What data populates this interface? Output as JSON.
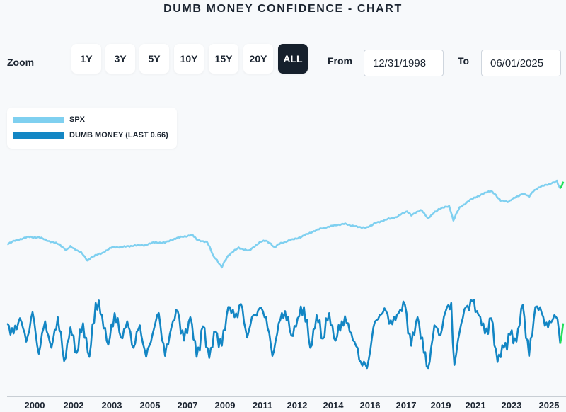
{
  "title": "DUMB MONEY CONFIDENCE - CHART",
  "zoom": {
    "label": "Zoom",
    "options": [
      "1Y",
      "3Y",
      "5Y",
      "10Y",
      "15Y",
      "20Y",
      "ALL"
    ],
    "selected": "ALL"
  },
  "range": {
    "from_label": "From",
    "from_value": "12/31/1998",
    "to_label": "To",
    "to_value": "06/01/2025"
  },
  "legend": [
    {
      "name": "SPX",
      "color": "#7fd0f0"
    },
    {
      "name": "DUMB MONEY (LAST 0.66)",
      "color": "#1386c4"
    }
  ],
  "colors": {
    "spx": "#7fd0f0",
    "dumb_money": "#1386c4",
    "latest_move": "#21e05a",
    "axis": "#9aa3ad"
  },
  "chart_data": {
    "type": "line",
    "x_ticks": [
      "2000",
      "2002",
      "2003",
      "2005",
      "2007",
      "2009",
      "2011",
      "2012",
      "2014",
      "2016",
      "2017",
      "2019",
      "2021",
      "2023",
      "2025"
    ],
    "xlim": [
      1998.99,
      2025.42
    ],
    "series": [
      {
        "name": "SPX",
        "points": [
          [
            1999.0,
            1229
          ],
          [
            1999.5,
            1372
          ],
          [
            2000.0,
            1469
          ],
          [
            2000.5,
            1455
          ],
          [
            2001.0,
            1320
          ],
          [
            2001.5,
            1211
          ],
          [
            2001.8,
            1040
          ],
          [
            2002.0,
            1148
          ],
          [
            2002.5,
            990
          ],
          [
            2002.8,
            815
          ],
          [
            2003.0,
            880
          ],
          [
            2003.5,
            975
          ],
          [
            2004.0,
            1132
          ],
          [
            2004.5,
            1140
          ],
          [
            2005.0,
            1181
          ],
          [
            2005.5,
            1191
          ],
          [
            2006.0,
            1280
          ],
          [
            2006.5,
            1270
          ],
          [
            2007.0,
            1418
          ],
          [
            2007.5,
            1504
          ],
          [
            2007.8,
            1540
          ],
          [
            2008.0,
            1378
          ],
          [
            2008.5,
            1280
          ],
          [
            2008.8,
            900
          ],
          [
            2009.2,
            680
          ],
          [
            2009.5,
            920
          ],
          [
            2010.0,
            1115
          ],
          [
            2010.5,
            1030
          ],
          [
            2011.0,
            1286
          ],
          [
            2011.3,
            1345
          ],
          [
            2011.7,
            1130
          ],
          [
            2012.0,
            1258
          ],
          [
            2012.5,
            1362
          ],
          [
            2013.0,
            1480
          ],
          [
            2013.5,
            1680
          ],
          [
            2014.0,
            1848
          ],
          [
            2014.5,
            1960
          ],
          [
            2015.0,
            2058
          ],
          [
            2015.6,
            1910
          ],
          [
            2016.1,
            1860
          ],
          [
            2016.5,
            2098
          ],
          [
            2017.0,
            2278
          ],
          [
            2017.5,
            2450
          ],
          [
            2018.0,
            2823
          ],
          [
            2018.2,
            2580
          ],
          [
            2018.7,
            2910
          ],
          [
            2018.98,
            2350
          ],
          [
            2019.5,
            2980
          ],
          [
            2020.0,
            3230
          ],
          [
            2020.2,
            2237
          ],
          [
            2020.5,
            3100
          ],
          [
            2021.0,
            3756
          ],
          [
            2021.5,
            4300
          ],
          [
            2022.0,
            4766
          ],
          [
            2022.45,
            3700
          ],
          [
            2022.78,
            3580
          ],
          [
            2023.0,
            3840
          ],
          [
            2023.5,
            4450
          ],
          [
            2023.8,
            4117
          ],
          [
            2024.0,
            4770
          ],
          [
            2024.5,
            5460
          ],
          [
            2025.0,
            5882
          ],
          [
            2025.12,
            6120
          ],
          [
            2025.27,
            4982
          ],
          [
            2025.42,
            5912
          ]
        ]
      },
      {
        "name": "DUMB MONEY (LAST 0.66)",
        "ylim": [
          0.15,
          0.95
        ],
        "points": [
          [
            1999.0,
            0.66
          ],
          [
            1999.3,
            0.56
          ],
          [
            1999.6,
            0.71
          ],
          [
            1999.9,
            0.48
          ],
          [
            2000.2,
            0.77
          ],
          [
            2000.5,
            0.36
          ],
          [
            2000.8,
            0.68
          ],
          [
            2001.1,
            0.42
          ],
          [
            2001.4,
            0.72
          ],
          [
            2001.7,
            0.29
          ],
          [
            2002.0,
            0.62
          ],
          [
            2002.3,
            0.37
          ],
          [
            2002.6,
            0.66
          ],
          [
            2002.9,
            0.33
          ],
          [
            2003.2,
            0.86
          ],
          [
            2003.5,
            0.74
          ],
          [
            2003.8,
            0.45
          ],
          [
            2004.1,
            0.76
          ],
          [
            2004.4,
            0.52
          ],
          [
            2004.7,
            0.68
          ],
          [
            2005.0,
            0.42
          ],
          [
            2005.3,
            0.64
          ],
          [
            2005.6,
            0.33
          ],
          [
            2005.9,
            0.55
          ],
          [
            2006.2,
            0.76
          ],
          [
            2006.5,
            0.34
          ],
          [
            2006.8,
            0.62
          ],
          [
            2007.1,
            0.78
          ],
          [
            2007.4,
            0.49
          ],
          [
            2007.7,
            0.72
          ],
          [
            2008.0,
            0.33
          ],
          [
            2008.3,
            0.63
          ],
          [
            2008.6,
            0.32
          ],
          [
            2008.9,
            0.58
          ],
          [
            2009.2,
            0.44
          ],
          [
            2009.5,
            0.82
          ],
          [
            2009.8,
            0.72
          ],
          [
            2010.1,
            0.85
          ],
          [
            2010.4,
            0.52
          ],
          [
            2010.7,
            0.74
          ],
          [
            2011.0,
            0.81
          ],
          [
            2011.3,
            0.72
          ],
          [
            2011.6,
            0.34
          ],
          [
            2011.9,
            0.66
          ],
          [
            2012.2,
            0.78
          ],
          [
            2012.5,
            0.54
          ],
          [
            2012.8,
            0.71
          ],
          [
            2013.1,
            0.82
          ],
          [
            2013.4,
            0.42
          ],
          [
            2013.7,
            0.74
          ],
          [
            2014.0,
            0.51
          ],
          [
            2014.3,
            0.76
          ],
          [
            2014.6,
            0.49
          ],
          [
            2014.9,
            0.68
          ],
          [
            2015.2,
            0.66
          ],
          [
            2015.5,
            0.48
          ],
          [
            2015.8,
            0.28
          ],
          [
            2016.1,
            0.22
          ],
          [
            2016.4,
            0.62
          ],
          [
            2016.7,
            0.74
          ],
          [
            2017.0,
            0.78
          ],
          [
            2017.3,
            0.65
          ],
          [
            2017.6,
            0.76
          ],
          [
            2017.9,
            0.84
          ],
          [
            2018.2,
            0.44
          ],
          [
            2018.5,
            0.72
          ],
          [
            2018.8,
            0.37
          ],
          [
            2019.0,
            0.22
          ],
          [
            2019.3,
            0.64
          ],
          [
            2019.6,
            0.55
          ],
          [
            2019.9,
            0.82
          ],
          [
            2020.1,
            0.86
          ],
          [
            2020.25,
            0.25
          ],
          [
            2020.5,
            0.58
          ],
          [
            2020.8,
            0.82
          ],
          [
            2021.1,
            0.88
          ],
          [
            2021.4,
            0.74
          ],
          [
            2021.7,
            0.56
          ],
          [
            2022.0,
            0.71
          ],
          [
            2022.3,
            0.28
          ],
          [
            2022.6,
            0.42
          ],
          [
            2022.9,
            0.55
          ],
          [
            2023.2,
            0.48
          ],
          [
            2023.5,
            0.84
          ],
          [
            2023.8,
            0.34
          ],
          [
            2024.1,
            0.82
          ],
          [
            2024.4,
            0.76
          ],
          [
            2024.7,
            0.62
          ],
          [
            2025.0,
            0.74
          ],
          [
            2025.15,
            0.7
          ],
          [
            2025.28,
            0.46
          ],
          [
            2025.42,
            0.66
          ]
        ]
      }
    ]
  }
}
